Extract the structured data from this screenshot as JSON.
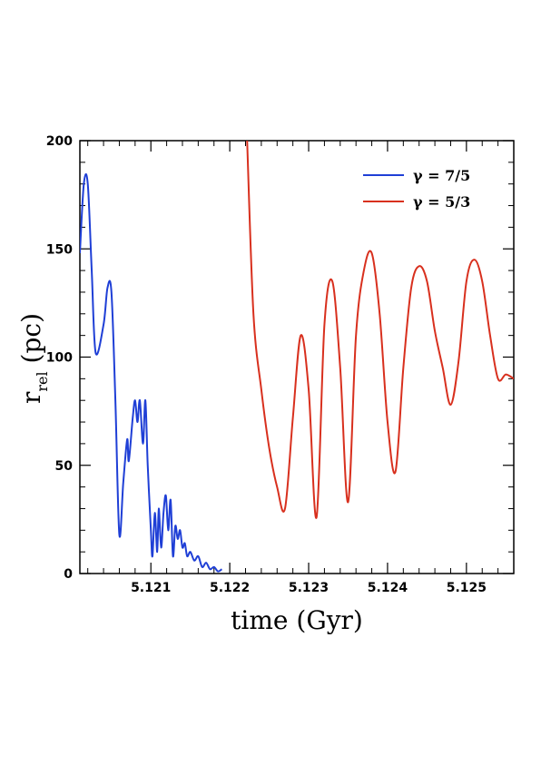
{
  "chart_data": {
    "type": "line",
    "xlabel": "time (Gyr)",
    "ylabel_main": "r",
    "ylabel_sub": "rel",
    "ylabel_unit": "(pc)",
    "xlim": [
      5.1201,
      5.1256
    ],
    "ylim": [
      0,
      200
    ],
    "x_ticks": [
      5.121,
      5.122,
      5.123,
      5.124,
      5.125
    ],
    "x_tick_labels": [
      "5.121",
      "5.122",
      "5.123",
      "5.124",
      "5.125"
    ],
    "y_ticks": [
      0,
      50,
      100,
      150,
      200
    ],
    "y_tick_labels": [
      "0",
      "50",
      "100",
      "150",
      "200"
    ],
    "grid": false,
    "legend_position": "top-right",
    "series": [
      {
        "name": "γ = 7/5",
        "color": "#1f3fd6",
        "x": [
          5.1201,
          5.12015,
          5.1202,
          5.12025,
          5.1203,
          5.1204,
          5.12045,
          5.1205,
          5.12055,
          5.1206,
          5.12065,
          5.1207,
          5.12072,
          5.12077,
          5.1208,
          5.12083,
          5.12086,
          5.1209,
          5.12093,
          5.12096,
          5.121,
          5.12102,
          5.12105,
          5.12108,
          5.1211,
          5.12113,
          5.12116,
          5.12119,
          5.12122,
          5.12125,
          5.12128,
          5.12131,
          5.12134,
          5.12137,
          5.1214,
          5.12143,
          5.12146,
          5.1215,
          5.12155,
          5.1216,
          5.12165,
          5.1217,
          5.12175,
          5.1218,
          5.12185,
          5.1219
        ],
        "y": [
          148,
          180,
          180,
          140,
          102,
          115,
          132,
          130,
          80,
          18,
          42,
          62,
          52,
          72,
          80,
          70,
          80,
          60,
          80,
          50,
          20,
          8,
          28,
          10,
          30,
          12,
          28,
          36,
          20,
          34,
          8,
          22,
          16,
          20,
          12,
          14,
          8,
          10,
          6,
          8,
          3,
          5,
          2,
          3,
          1,
          2
        ]
      },
      {
        "name": "γ = 5/3",
        "color": "#d8301e",
        "x": [
          5.12222,
          5.1223,
          5.1224,
          5.1225,
          5.1226,
          5.1227,
          5.1228,
          5.1229,
          5.123,
          5.1231,
          5.1232,
          5.1233,
          5.1234,
          5.1235,
          5.1236,
          5.1237,
          5.1238,
          5.1239,
          5.124,
          5.1241,
          5.1242,
          5.1243,
          5.1244,
          5.1245,
          5.1246,
          5.1247,
          5.1248,
          5.1249,
          5.125,
          5.1251,
          5.1252,
          5.1253,
          5.1254,
          5.1255,
          5.1256
        ],
        "y": [
          200,
          120,
          85,
          58,
          40,
          30,
          72,
          110,
          85,
          26,
          115,
          135,
          95,
          33,
          110,
          140,
          148,
          120,
          70,
          47,
          95,
          132,
          142,
          135,
          112,
          95,
          78,
          98,
          135,
          145,
          135,
          110,
          90,
          92,
          90
        ]
      }
    ]
  }
}
